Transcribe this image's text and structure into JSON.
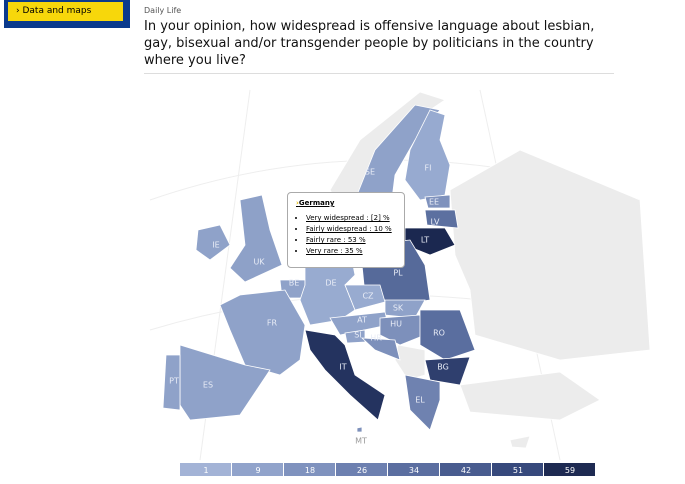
{
  "nav": {
    "button": "Data and maps"
  },
  "header": {
    "category": "Daily Life",
    "title": "In your opinion, how widespread is offensive language about lesbian, gay, bisexual and/or transgender people by politicians in the country where you live?"
  },
  "tooltip": {
    "country": "Germany",
    "items": [
      "Very widespread : [2] %",
      "Fairly widespread : 10 %",
      "Fairly rare : 53 %",
      "Very rare : 35 %"
    ]
  },
  "map": {
    "countries": [
      {
        "code": "SE",
        "color": "#8fa2c9"
      },
      {
        "code": "FI",
        "color": "#97aad0"
      },
      {
        "code": "EE",
        "color": "#7f92bd"
      },
      {
        "code": "LV",
        "color": "#5c70a0"
      },
      {
        "code": "LT",
        "color": "#1b2850"
      },
      {
        "code": "IE",
        "color": "#8fa2c9"
      },
      {
        "code": "UK",
        "color": "#8ea1c8"
      },
      {
        "code": "PL",
        "color": "#566a9a"
      },
      {
        "code": "BE",
        "color": "#8fa2c9"
      },
      {
        "code": "DE",
        "color": "#98abd0"
      },
      {
        "code": "CZ",
        "color": "#98abd0"
      },
      {
        "code": "SK",
        "color": "#8fa2c9"
      },
      {
        "code": "AT",
        "color": "#8fa2c9"
      },
      {
        "code": "HU",
        "color": "#7d90bb"
      },
      {
        "code": "SI",
        "color": "#8fa2c9"
      },
      {
        "code": "HR",
        "color": "#7d90bb"
      },
      {
        "code": "RO",
        "color": "#5a6e9f"
      },
      {
        "code": "BG",
        "color": "#2f3f6e"
      },
      {
        "code": "EL",
        "color": "#6f82b0"
      },
      {
        "code": "IT",
        "color": "#24335f"
      },
      {
        "code": "FR",
        "color": "#8fa2c9"
      },
      {
        "code": "ES",
        "color": "#8fa2c9"
      },
      {
        "code": "PT",
        "color": "#8fa2c9"
      },
      {
        "code": "MT",
        "color": "#7d90bb"
      }
    ]
  },
  "legend": {
    "ticks": [
      1,
      9,
      18,
      26,
      34,
      42,
      51,
      59
    ],
    "colors": [
      "#a3b3d6",
      "#91a3cb",
      "#7f92be",
      "#6d80b0",
      "#5b6ea0",
      "#495c8f",
      "#37497c",
      "#1e2a52"
    ]
  }
}
